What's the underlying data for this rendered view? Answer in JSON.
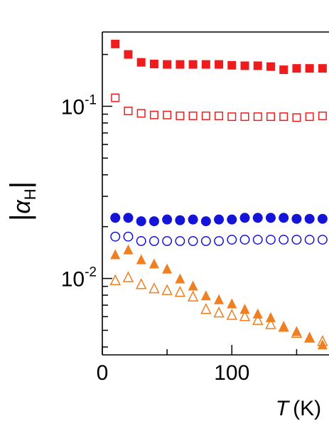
{
  "chart_data": {
    "type": "scatter",
    "title": "",
    "xlabel": "T (K)",
    "xlabel_symbol": "T",
    "xlabel_unit": "(K)",
    "ylabel": "|αH|",
    "ylabel_symbol": "α",
    "ylabel_sub": "H",
    "yscale": "log",
    "xlim": [
      0,
      175
    ],
    "ylim": [
      0.0036,
      0.27
    ],
    "x_ticks": [
      {
        "value": 0,
        "label": "0"
      },
      {
        "value": 100,
        "label": "100"
      }
    ],
    "y_ticks": [
      {
        "value": 0.1,
        "base": "10",
        "exp": "-1"
      },
      {
        "value": 0.01,
        "base": "10",
        "exp": "-2"
      }
    ],
    "legend": "none",
    "grid": false,
    "series": [
      {
        "marker": "square",
        "filled": true,
        "color": "#ee1c1c",
        "x": [
          10,
          20,
          30,
          40,
          50,
          60,
          70,
          80,
          90,
          100,
          110,
          120,
          130,
          140,
          150,
          160,
          170
        ],
        "y": [
          0.23,
          0.2,
          0.18,
          0.176,
          0.175,
          0.175,
          0.175,
          0.175,
          0.175,
          0.173,
          0.172,
          0.172,
          0.17,
          0.163,
          0.166,
          0.166,
          0.166
        ]
      },
      {
        "marker": "square",
        "filled": false,
        "color": "#ee1c1c",
        "x": [
          10,
          20,
          30,
          40,
          50,
          60,
          70,
          80,
          90,
          100,
          110,
          120,
          130,
          140,
          150,
          160,
          170
        ],
        "y": [
          0.112,
          0.094,
          0.091,
          0.089,
          0.089,
          0.088,
          0.088,
          0.088,
          0.088,
          0.087,
          0.087,
          0.087,
          0.087,
          0.087,
          0.086,
          0.087,
          0.088
        ]
      },
      {
        "marker": "circle",
        "filled": true,
        "color": "#1414d8",
        "x": [
          10,
          20,
          30,
          40,
          50,
          60,
          70,
          80,
          90,
          100,
          110,
          120,
          130,
          140,
          150,
          160,
          170
        ],
        "y": [
          0.0225,
          0.0225,
          0.0215,
          0.0215,
          0.022,
          0.0218,
          0.022,
          0.0215,
          0.022,
          0.022,
          0.0225,
          0.0225,
          0.0225,
          0.0225,
          0.0222,
          0.0222,
          0.0222
        ]
      },
      {
        "marker": "circle",
        "filled": false,
        "color": "#1414d8",
        "x": [
          10,
          20,
          30,
          40,
          50,
          60,
          70,
          80,
          90,
          100,
          110,
          120,
          130,
          140,
          150,
          160,
          170
        ],
        "y": [
          0.0175,
          0.0175,
          0.0165,
          0.0165,
          0.0165,
          0.0165,
          0.0165,
          0.0165,
          0.0165,
          0.0168,
          0.0168,
          0.0168,
          0.0168,
          0.0168,
          0.0168,
          0.0168,
          0.0168
        ]
      },
      {
        "marker": "triangle",
        "filled": true,
        "color": "#f07f22",
        "x": [
          10,
          20,
          30,
          40,
          50,
          60,
          70,
          80,
          90,
          100,
          110,
          120,
          130,
          140,
          150,
          160,
          170
        ],
        "y": [
          0.0137,
          0.0146,
          0.0128,
          0.0121,
          0.0113,
          0.0099,
          0.009,
          0.0079,
          0.0075,
          0.0071,
          0.0066,
          0.0062,
          0.0059,
          0.0052,
          0.0049,
          0.0045,
          0.0041
        ]
      },
      {
        "marker": "triangle",
        "filled": false,
        "color": "#f07f22",
        "x": [
          10,
          20,
          30,
          40,
          50,
          60,
          70,
          80,
          90,
          100,
          110,
          120,
          130,
          140,
          150,
          160,
          170
        ],
        "y": [
          0.0097,
          0.0101,
          0.0092,
          0.0087,
          0.0085,
          0.0083,
          0.0078,
          0.0066,
          0.0063,
          0.0061,
          0.006,
          0.0057,
          0.0054,
          0.0052,
          0.0048,
          0.0045,
          0.0043
        ]
      }
    ]
  }
}
